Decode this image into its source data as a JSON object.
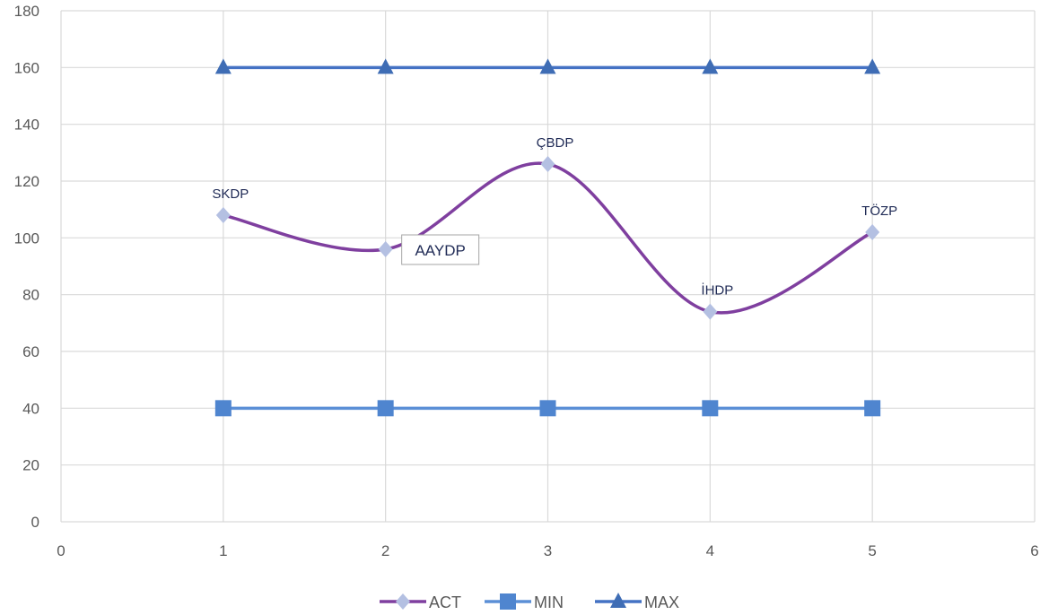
{
  "chart_data": {
    "type": "scatter",
    "title": "",
    "xlabel": "",
    "ylabel": "",
    "xlim": [
      0,
      6
    ],
    "ylim": [
      0,
      180
    ],
    "x_ticks": [
      0,
      1,
      2,
      3,
      4,
      5,
      6
    ],
    "y_ticks": [
      0,
      20,
      40,
      60,
      80,
      100,
      120,
      140,
      160,
      180
    ],
    "grid": true,
    "legend_position": "bottom",
    "series": [
      {
        "name": "ACT",
        "color": "#7f3f9f",
        "marker": "diamond",
        "marker_color": "#b4c0e2",
        "smooth": true,
        "points": [
          {
            "x": 1,
            "y": 108,
            "label": "SKDP"
          },
          {
            "x": 2,
            "y": 96,
            "label": "AAYDP"
          },
          {
            "x": 3,
            "y": 126,
            "label": "ÇBDP"
          },
          {
            "x": 4,
            "y": 74,
            "label": "İHDP"
          },
          {
            "x": 5,
            "y": 102,
            "label": "TÖZP"
          }
        ]
      },
      {
        "name": "MIN",
        "color": "#5b8fd6",
        "marker": "square",
        "marker_color": "#4f85cf",
        "smooth": false,
        "points": [
          {
            "x": 1,
            "y": 40
          },
          {
            "x": 2,
            "y": 40
          },
          {
            "x": 3,
            "y": 40
          },
          {
            "x": 4,
            "y": 40
          },
          {
            "x": 5,
            "y": 40
          }
        ]
      },
      {
        "name": "MAX",
        "color": "#4472c4",
        "marker": "triangle",
        "marker_color": "#3f6db5",
        "smooth": false,
        "points": [
          {
            "x": 1,
            "y": 160
          },
          {
            "x": 2,
            "y": 160
          },
          {
            "x": 3,
            "y": 160
          },
          {
            "x": 4,
            "y": 160
          },
          {
            "x": 5,
            "y": 160
          }
        ]
      }
    ]
  }
}
